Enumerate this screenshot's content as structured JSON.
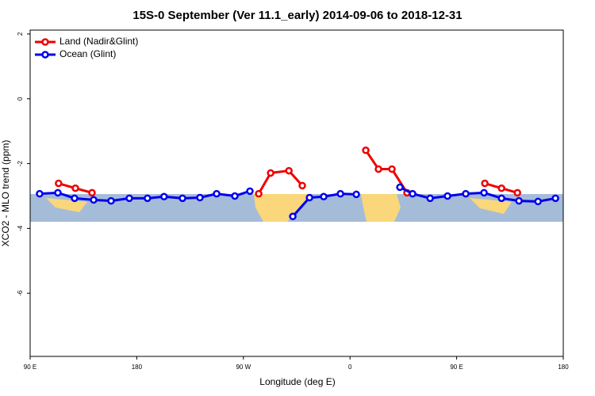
{
  "chart_data": {
    "type": "line",
    "title": "15S-0 September (Ver 11.1_early)   2014-09-06 to 2018-12-31",
    "xlabel": "Longitude (deg E)",
    "ylabel": "XCO2 - MLO trend (ppm)",
    "xlim": [
      90,
      540
    ],
    "ylim": [
      -7.95,
      2.12
    ],
    "xticks": [
      {
        "value": 90,
        "label": "90 E"
      },
      180,
      {
        "value": 270,
        "label": "90 W"
      },
      {
        "value": 360,
        "label": "0"
      },
      {
        "value": 450,
        "label": "90 E"
      },
      {
        "value": 540,
        "label": "180"
      }
    ],
    "yticks": [
      2,
      0,
      -2,
      -4,
      -6
    ],
    "legend": "top-left",
    "series": [
      {
        "name": "Land (Nadir&Glint)",
        "color": "#ee0000",
        "x": [
          114,
          128.2,
          142.2,
          null,
          282.9,
          293,
          308.4,
          319.7,
          null,
          373.3,
          384,
          395.4,
          408.1,
          null,
          473.8,
          487.9,
          501.3
        ],
        "values": [
          -2.61,
          -2.76,
          -2.9,
          null,
          -2.93,
          -2.29,
          -2.22,
          -2.68,
          null,
          -1.59,
          -2.17,
          -2.17,
          -2.9,
          null,
          -2.61,
          -2.76,
          -2.9
        ]
      },
      {
        "name": "Ocean (Glint)",
        "color": "#0000ee",
        "x": [
          98,
          113.4,
          127.5,
          143.6,
          158.3,
          173.7,
          189,
          203,
          218.6,
          233.3,
          247.4,
          262.8,
          275.5,
          null,
          311.7,
          325.8,
          337.8,
          351.9,
          365.3,
          null,
          402.1,
          412.8,
          427.6,
          442.3,
          457.7,
          473.1,
          487.9,
          502.6,
          518.7,
          533.4
        ],
        "values": [
          -2.93,
          -2.9,
          -3.07,
          -3.12,
          -3.15,
          -3.07,
          -3.07,
          -3.02,
          -3.07,
          -3.05,
          -2.93,
          -3.0,
          -2.85,
          null,
          -3.63,
          -3.05,
          -3.02,
          -2.93,
          -2.95,
          null,
          -2.73,
          -2.93,
          -3.07,
          -3.0,
          -2.93,
          -2.9,
          -3.07,
          -3.15,
          -3.17,
          -3.07
        ]
      }
    ]
  }
}
